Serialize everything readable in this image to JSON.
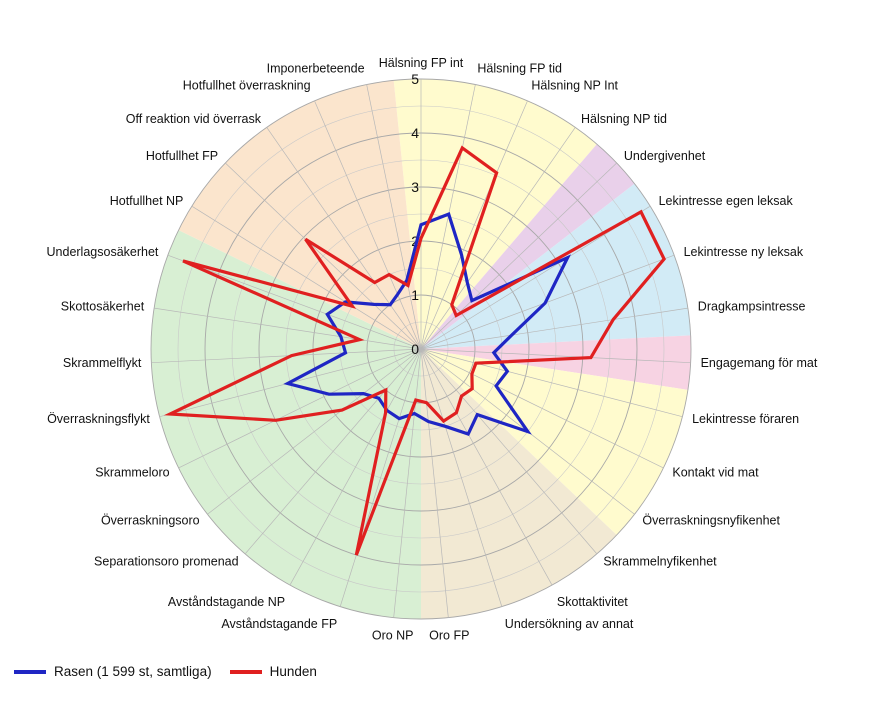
{
  "chart_data": {
    "type": "radar",
    "rmax": 5,
    "ticks": [
      0,
      1,
      2,
      3,
      4,
      5
    ],
    "categories": [
      "Hälsning FP int",
      "Hälsning FP tid",
      "Hälsning NP Int",
      "Hälsning NP tid",
      "Undergivenhet",
      "Lekintresse egen leksak",
      "Lekintresse ny leksak",
      "Dragkampsintresse",
      "Engagemang för mat",
      "Lekintresse föraren",
      "Kontakt vid mat",
      "Överraskningsnyfikenhet",
      "Skrammelnyfikenhet",
      "Skottaktivitet",
      "Undersökning av annat",
      "Oro FP",
      "Oro NP",
      "Avståndstagande FP",
      "Avståndstagande NP",
      "Separationsoro promenad",
      "Överraskningsoro",
      "Skrammeloro",
      "Överraskningsflykt",
      "Skrammelflykt",
      "Skottosäkerhet",
      "Underlagsosäkerhet",
      "Hotfullhet NP",
      "Hotfullhet FP",
      "Off reaktion vid överrask",
      "Hotfullhet överraskning",
      "Imponerbeteende"
    ],
    "series": [
      {
        "name": "Rasen (1 599 st, samtliga)",
        "color": "#1f26c4",
        "values": [
          2.3,
          2.55,
          1.9,
          1.5,
          1.3,
          3.2,
          2.45,
          1.7,
          1.35,
          1.65,
          1.55,
          2.5,
          1.6,
          1.8,
          1.5,
          1.35,
          1.2,
          1.35,
          1.3,
          1.2,
          1.35,
          1.9,
          2.55,
          1.4,
          1.5,
          1.85,
          1.65,
          1.2,
          1.0,
          1.1,
          1.3
        ]
      },
      {
        "name": "Hunden",
        "color": "#e02020",
        "values": [
          2.05,
          3.8,
          3.55,
          1.0,
          0.9,
          4.8,
          4.8,
          3.6,
          3.15,
          1.05,
          1.05,
          1.2,
          1.15,
          1.35,
          1.4,
          1.0,
          0.95,
          4.0,
          1.35,
          1.0,
          1.85,
          3.0,
          4.8,
          2.4,
          1.15,
          4.7,
          1.5,
          2.95,
          1.5,
          1.5,
          1.2
        ]
      }
    ],
    "bands": [
      {
        "from": 0,
        "to": 3,
        "color": "#fffbce"
      },
      {
        "from": 4,
        "to": 4,
        "color": "#e9d0ea"
      },
      {
        "from": 5,
        "to": 7,
        "color": "#d2ebf6"
      },
      {
        "from": 8,
        "to": 8,
        "color": "#f7d3e3"
      },
      {
        "from": 9,
        "to": 11,
        "color": "#fffbce"
      },
      {
        "from": 12,
        "to": 15,
        "color": "#f2e9d3"
      },
      {
        "from": 16,
        "to": 25,
        "color": "#d8efd3"
      },
      {
        "from": 26,
        "to": 30,
        "color": "#fbe5cd"
      }
    ]
  }
}
